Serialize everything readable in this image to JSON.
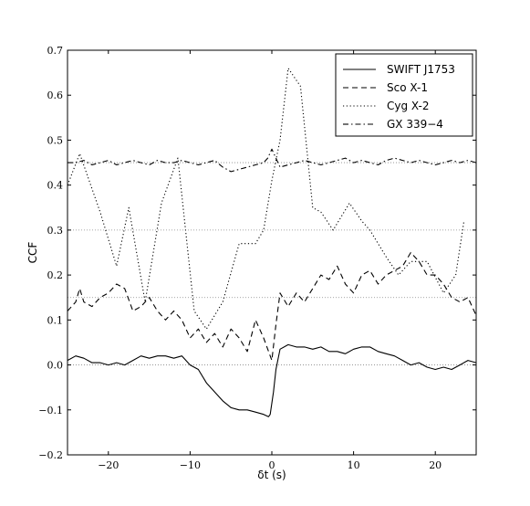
{
  "chart_data": {
    "type": "line",
    "title": "",
    "xlabel": "δt (s)",
    "ylabel": "CCF",
    "xlim": [
      -25,
      25
    ],
    "ylim": [
      -0.2,
      0.7
    ],
    "x_ticks": [
      -20,
      -10,
      0,
      10,
      20
    ],
    "x_tick_labels": [
      "−20",
      "−10",
      "0",
      "10",
      "20"
    ],
    "y_ticks": [
      -0.2,
      -0.1,
      0.0,
      0.1,
      0.2,
      0.3,
      0.4,
      0.5,
      0.6,
      0.7
    ],
    "y_tick_labels": [
      "−0.2",
      "−0.1",
      "0.0",
      "0.1",
      "0.2",
      "0.3",
      "0.4",
      "0.5",
      "0.6",
      "0.7"
    ],
    "reference_lines": [
      0.0,
      0.15,
      0.3,
      0.45
    ],
    "legend_position": "top-right",
    "series": [
      {
        "name": "SWIFT J1753",
        "style": "solid",
        "x": [
          -25,
          -24,
          -23,
          -22,
          -21,
          -20,
          -19,
          -18,
          -17,
          -16,
          -15,
          -14,
          -13,
          -12,
          -11,
          -10,
          -9,
          -8,
          -7,
          -6,
          -5,
          -4,
          -3,
          -2,
          -1,
          -0.4,
          -0.2,
          0.2,
          0.5,
          1,
          2,
          3,
          4,
          5,
          6,
          7,
          8,
          9,
          10,
          11,
          12,
          13,
          14,
          15,
          16,
          17,
          18,
          19,
          20,
          21,
          22,
          23,
          24,
          25
        ],
        "y": [
          0.01,
          0.02,
          0.015,
          0.005,
          0.005,
          0.0,
          0.005,
          0.0,
          0.01,
          0.02,
          0.015,
          0.02,
          0.02,
          0.015,
          0.02,
          0.0,
          -0.01,
          -0.04,
          -0.06,
          -0.08,
          -0.095,
          -0.1,
          -0.1,
          -0.105,
          -0.11,
          -0.115,
          -0.11,
          -0.06,
          -0.01,
          0.035,
          0.045,
          0.04,
          0.04,
          0.035,
          0.04,
          0.03,
          0.03,
          0.025,
          0.035,
          0.04,
          0.04,
          0.03,
          0.025,
          0.02,
          0.01,
          0.0,
          0.005,
          -0.005,
          -0.01,
          -0.005,
          -0.01,
          0.0,
          0.01,
          0.005
        ]
      },
      {
        "name": "Sco X-1",
        "style": "dashed",
        "x": [
          -25,
          -24,
          -23.5,
          -23,
          -22,
          -21,
          -20,
          -19,
          -18,
          -17,
          -16,
          -15,
          -14,
          -13,
          -12,
          -11,
          -10,
          -9,
          -8,
          -7,
          -6,
          -5,
          -4,
          -3,
          -2,
          -1,
          0,
          0.5,
          1,
          2,
          3,
          4,
          5,
          6,
          7,
          8,
          9,
          10,
          11,
          12,
          13,
          14,
          15,
          16,
          17,
          18,
          19,
          20,
          21,
          22,
          23,
          24,
          25
        ],
        "y": [
          0.12,
          0.14,
          0.17,
          0.14,
          0.13,
          0.15,
          0.16,
          0.18,
          0.17,
          0.12,
          0.13,
          0.15,
          0.12,
          0.1,
          0.12,
          0.1,
          0.06,
          0.08,
          0.05,
          0.07,
          0.04,
          0.08,
          0.06,
          0.03,
          0.1,
          0.06,
          0.01,
          0.09,
          0.16,
          0.13,
          0.16,
          0.14,
          0.17,
          0.2,
          0.19,
          0.22,
          0.18,
          0.16,
          0.2,
          0.21,
          0.18,
          0.2,
          0.21,
          0.22,
          0.25,
          0.23,
          0.2,
          0.2,
          0.18,
          0.15,
          0.14,
          0.15,
          0.11
        ]
      },
      {
        "name": "Cyg X-2",
        "style": "dotted",
        "x": [
          -25,
          -23.5,
          -21,
          -19,
          -17.5,
          -15.5,
          -13.5,
          -11.5,
          -9.5,
          -8,
          -6,
          -4,
          -2,
          -1,
          0,
          1,
          2,
          3.5,
          5,
          6,
          7.5,
          9.5,
          11,
          12,
          14,
          15.5,
          17,
          19,
          21,
          22.5,
          23.5
        ],
        "y": [
          0.4,
          0.47,
          0.34,
          0.22,
          0.35,
          0.14,
          0.36,
          0.46,
          0.12,
          0.08,
          0.14,
          0.27,
          0.27,
          0.3,
          0.41,
          0.5,
          0.66,
          0.62,
          0.35,
          0.34,
          0.3,
          0.36,
          0.32,
          0.3,
          0.24,
          0.2,
          0.23,
          0.23,
          0.16,
          0.2,
          0.32
        ]
      },
      {
        "name": "GX 339−4",
        "style": "dashdot",
        "x": [
          -25,
          -24,
          -23,
          -22,
          -21,
          -20,
          -19,
          -18,
          -17,
          -16,
          -15,
          -14,
          -13,
          -12,
          -11,
          -10,
          -9,
          -8,
          -7,
          -6,
          -5,
          -4,
          -3,
          -2,
          -1,
          -0.5,
          0,
          1,
          2,
          3,
          4,
          5,
          6,
          7,
          8,
          9,
          10,
          11,
          12,
          13,
          14,
          15,
          16,
          17,
          18,
          19,
          20,
          21,
          22,
          23,
          24,
          25
        ],
        "y": [
          0.45,
          0.45,
          0.455,
          0.445,
          0.45,
          0.455,
          0.445,
          0.45,
          0.455,
          0.45,
          0.445,
          0.455,
          0.45,
          0.45,
          0.455,
          0.45,
          0.445,
          0.45,
          0.455,
          0.44,
          0.43,
          0.435,
          0.44,
          0.445,
          0.45,
          0.46,
          0.48,
          0.44,
          0.445,
          0.45,
          0.455,
          0.45,
          0.445,
          0.45,
          0.455,
          0.46,
          0.45,
          0.455,
          0.45,
          0.445,
          0.455,
          0.46,
          0.455,
          0.45,
          0.455,
          0.45,
          0.445,
          0.45,
          0.455,
          0.45,
          0.455,
          0.45
        ]
      }
    ]
  }
}
